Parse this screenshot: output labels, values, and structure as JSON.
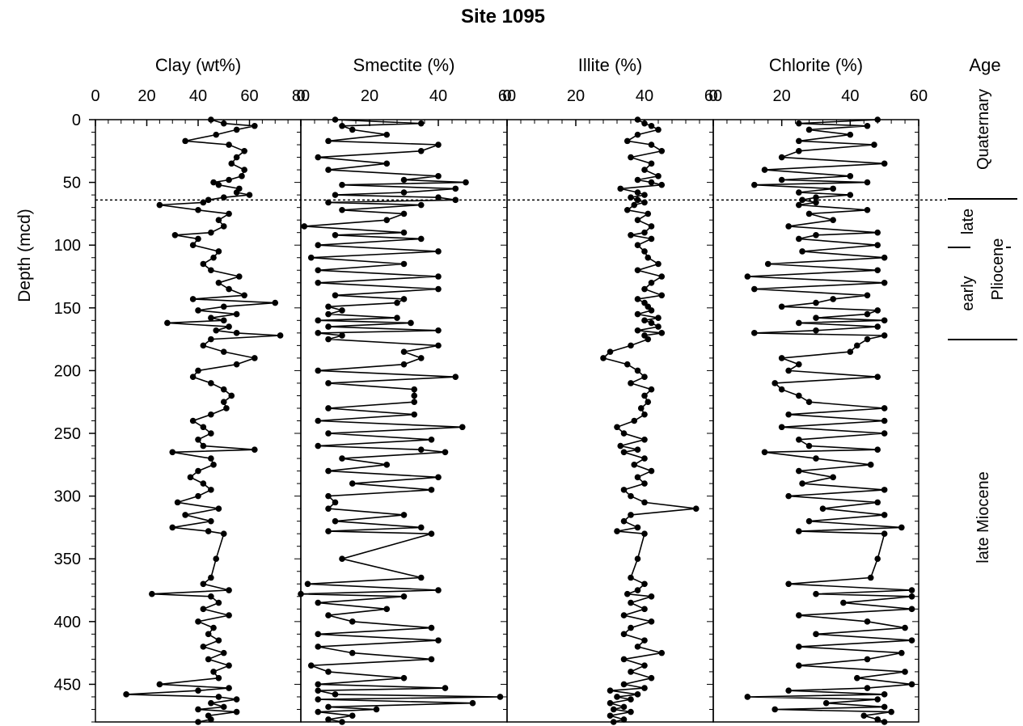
{
  "chart_data": {
    "type": "line",
    "title": "Site 1095",
    "ylabel": "Depth (mcd)",
    "ylim": [
      0,
      480
    ],
    "y_ticks": [
      "0",
      "50",
      "100",
      "150",
      "200",
      "250",
      "300",
      "350",
      "400",
      "450"
    ],
    "reference_line_depth": 64,
    "panels": [
      {
        "title": "Clay (wt%)",
        "xlim": [
          0,
          80
        ],
        "x_ticks": [
          "0",
          "20",
          "40",
          "60",
          "80"
        ],
        "depth": [
          0,
          3,
          5,
          8,
          12,
          17,
          20,
          25,
          30,
          35,
          40,
          45,
          48,
          50,
          52,
          55,
          58,
          60,
          62,
          64,
          66,
          68,
          72,
          75,
          80,
          85,
          90,
          92,
          95,
          100,
          105,
          110,
          115,
          120,
          125,
          130,
          135,
          140,
          143,
          146,
          149,
          152,
          155,
          158,
          160,
          162,
          165,
          168,
          170,
          172,
          175,
          180,
          185,
          190,
          195,
          200,
          205,
          210,
          215,
          220,
          225,
          230,
          235,
          240,
          245,
          250,
          255,
          260,
          263,
          265,
          270,
          275,
          280,
          285,
          290,
          295,
          300,
          305,
          310,
          315,
          320,
          325,
          328,
          330,
          350,
          365,
          370,
          375,
          378,
          380,
          385,
          390,
          395,
          400,
          405,
          410,
          415,
          420,
          425,
          430,
          435,
          440,
          445,
          450,
          453,
          455,
          458,
          460,
          462,
          465,
          468,
          470,
          472,
          475,
          478,
          480
        ],
        "values": [
          45,
          50,
          62,
          55,
          47,
          35,
          52,
          58,
          55,
          53,
          58,
          57,
          52,
          46,
          48,
          56,
          55,
          60,
          50,
          44,
          42,
          25,
          40,
          52,
          48,
          50,
          45,
          31,
          40,
          38,
          48,
          46,
          42,
          45,
          56,
          48,
          52,
          58,
          38,
          70,
          50,
          40,
          55,
          45,
          50,
          28,
          52,
          47,
          55,
          72,
          45,
          42,
          50,
          62,
          55,
          40,
          38,
          45,
          50,
          53,
          50,
          51,
          45,
          38,
          42,
          45,
          40,
          42,
          62,
          30,
          45,
          46,
          40,
          37,
          42,
          45,
          40,
          32,
          48,
          35,
          45,
          30,
          44,
          50,
          47,
          45,
          42,
          52,
          22,
          45,
          48,
          42,
          52,
          40,
          46,
          44,
          48,
          42,
          50,
          44,
          52,
          46,
          48,
          25,
          52,
          40,
          12,
          48,
          55,
          45,
          50,
          40,
          55,
          44,
          45,
          40
        ]
      },
      {
        "title": "Smectite (%)",
        "xlim": [
          0,
          60
        ],
        "x_ticks": [
          "0",
          "20",
          "40",
          "60"
        ],
        "depth": [
          0,
          3,
          5,
          8,
          12,
          17,
          20,
          25,
          30,
          35,
          40,
          45,
          48,
          50,
          52,
          55,
          58,
          60,
          62,
          64,
          66,
          68,
          72,
          75,
          80,
          85,
          90,
          92,
          95,
          100,
          105,
          110,
          115,
          120,
          125,
          130,
          135,
          140,
          143,
          146,
          149,
          152,
          155,
          158,
          160,
          162,
          165,
          168,
          170,
          172,
          175,
          180,
          185,
          190,
          195,
          200,
          205,
          210,
          215,
          220,
          225,
          230,
          235,
          240,
          245,
          250,
          255,
          260,
          263,
          265,
          270,
          275,
          280,
          285,
          290,
          295,
          300,
          305,
          310,
          315,
          320,
          325,
          328,
          330,
          350,
          365,
          370,
          375,
          378,
          380,
          385,
          390,
          395,
          400,
          405,
          410,
          415,
          420,
          425,
          430,
          435,
          440,
          445,
          450,
          453,
          455,
          458,
          460,
          462,
          465,
          468,
          470,
          472,
          475,
          478,
          480
        ],
        "values": [
          10,
          35,
          12,
          15,
          25,
          8,
          40,
          35,
          5,
          25,
          8,
          40,
          30,
          48,
          12,
          45,
          30,
          10,
          40,
          45,
          8,
          35,
          12,
          30,
          25,
          1,
          30,
          10,
          35,
          5,
          40,
          3,
          30,
          5,
          40,
          5,
          40,
          10,
          30,
          28,
          8,
          12,
          8,
          28,
          5,
          32,
          8,
          40,
          5,
          12,
          8,
          40,
          30,
          35,
          30,
          5,
          45,
          8,
          33,
          33,
          33,
          8,
          33,
          5,
          47,
          8,
          38,
          5,
          35,
          42,
          12,
          25,
          8,
          40,
          15,
          38,
          8,
          10,
          8,
          30,
          10,
          35,
          8,
          38,
          12,
          35,
          2,
          40,
          0,
          30,
          5,
          25,
          8,
          15,
          38,
          5,
          40,
          5,
          15,
          38,
          3,
          8,
          30,
          5,
          42,
          5,
          10,
          58,
          5,
          50,
          8,
          22,
          5,
          15,
          8,
          12
        ]
      },
      {
        "title": "Illite (%)",
        "xlim": [
          0,
          60
        ],
        "x_ticks": [
          "0",
          "20",
          "40",
          "60"
        ],
        "depth": [
          0,
          3,
          5,
          8,
          12,
          17,
          20,
          25,
          30,
          35,
          40,
          45,
          48,
          50,
          52,
          55,
          58,
          60,
          62,
          64,
          66,
          68,
          72,
          75,
          80,
          85,
          90,
          92,
          95,
          100,
          105,
          110,
          115,
          120,
          125,
          130,
          135,
          140,
          143,
          146,
          149,
          152,
          155,
          158,
          160,
          162,
          165,
          168,
          170,
          172,
          175,
          180,
          185,
          190,
          195,
          200,
          205,
          210,
          215,
          220,
          225,
          230,
          235,
          240,
          245,
          250,
          255,
          260,
          263,
          265,
          270,
          275,
          280,
          285,
          290,
          295,
          300,
          305,
          310,
          315,
          320,
          325,
          328,
          330,
          350,
          365,
          370,
          375,
          378,
          380,
          385,
          390,
          395,
          400,
          405,
          410,
          415,
          420,
          425,
          430,
          435,
          440,
          445,
          450,
          453,
          455,
          458,
          460,
          462,
          465,
          468,
          470,
          472,
          475,
          478,
          480
        ],
        "values": [
          38,
          40,
          42,
          44,
          38,
          35,
          42,
          45,
          36,
          42,
          40,
          44,
          38,
          42,
          45,
          33,
          38,
          40,
          36,
          38,
          40,
          37,
          35,
          41,
          38,
          42,
          40,
          36,
          42,
          38,
          40,
          41,
          44,
          38,
          45,
          42,
          40,
          45,
          38,
          40,
          41,
          42,
          38,
          44,
          40,
          42,
          44,
          38,
          45,
          40,
          41,
          36,
          30,
          28,
          35,
          38,
          40,
          36,
          42,
          40,
          41,
          39,
          40,
          37,
          32,
          34,
          40,
          33,
          38,
          34,
          40,
          37,
          42,
          38,
          40,
          34,
          36,
          40,
          55,
          36,
          34,
          38,
          32,
          40,
          38,
          36,
          40,
          38,
          35,
          42,
          36,
          40,
          34,
          42,
          36,
          34,
          40,
          38,
          45,
          34,
          40,
          36,
          42,
          34,
          40,
          30,
          38,
          32,
          36,
          30,
          34,
          31,
          36,
          30,
          34,
          31
        ]
      },
      {
        "title": "Chlorite (%)",
        "xlim": [
          0,
          60
        ],
        "x_ticks": [
          "0",
          "20",
          "40",
          "60"
        ],
        "depth": [
          0,
          3,
          5,
          8,
          12,
          17,
          20,
          25,
          30,
          35,
          40,
          45,
          48,
          50,
          52,
          55,
          58,
          60,
          62,
          64,
          66,
          68,
          72,
          75,
          80,
          85,
          90,
          92,
          95,
          100,
          105,
          110,
          115,
          120,
          125,
          130,
          135,
          140,
          143,
          146,
          149,
          152,
          155,
          158,
          160,
          162,
          165,
          168,
          170,
          172,
          175,
          180,
          185,
          190,
          195,
          200,
          205,
          210,
          215,
          220,
          225,
          230,
          235,
          240,
          245,
          250,
          255,
          260,
          263,
          265,
          270,
          275,
          280,
          285,
          290,
          295,
          300,
          305,
          310,
          315,
          320,
          325,
          328,
          330,
          350,
          365,
          370,
          375,
          378,
          380,
          385,
          390,
          395,
          400,
          405,
          410,
          415,
          420,
          425,
          430,
          435,
          440,
          445,
          450,
          453,
          455,
          458,
          460,
          462,
          465,
          468,
          470,
          472,
          475,
          478,
          480
        ],
        "values": [
          48,
          25,
          45,
          28,
          40,
          25,
          47,
          25,
          20,
          50,
          15,
          40,
          20,
          45,
          12,
          35,
          25,
          40,
          30,
          26,
          30,
          25,
          45,
          28,
          35,
          22,
          48,
          30,
          25,
          48,
          26,
          50,
          16,
          48,
          10,
          50,
          12,
          45,
          35,
          30,
          20,
          48,
          45,
          30,
          50,
          25,
          48,
          30,
          12,
          50,
          45,
          42,
          40,
          20,
          25,
          22,
          48,
          18,
          20,
          25,
          28,
          50,
          22,
          50,
          20,
          50,
          25,
          28,
          48,
          15,
          30,
          46,
          25,
          35,
          26,
          50,
          22,
          48,
          32,
          50,
          28,
          55,
          25,
          50,
          48,
          46,
          22,
          58,
          30,
          58,
          38,
          58,
          25,
          45,
          56,
          30,
          58,
          25,
          55,
          45,
          25,
          56,
          42,
          58,
          45,
          22,
          50,
          10,
          48,
          33,
          50,
          18,
          52,
          44,
          48,
          50
        ]
      }
    ],
    "age_labels": {
      "header": "Age",
      "quaternary": "Quaternary",
      "late": "late",
      "pliocene": "Pliocene",
      "early": "early",
      "late_miocene": "late Miocene"
    }
  }
}
